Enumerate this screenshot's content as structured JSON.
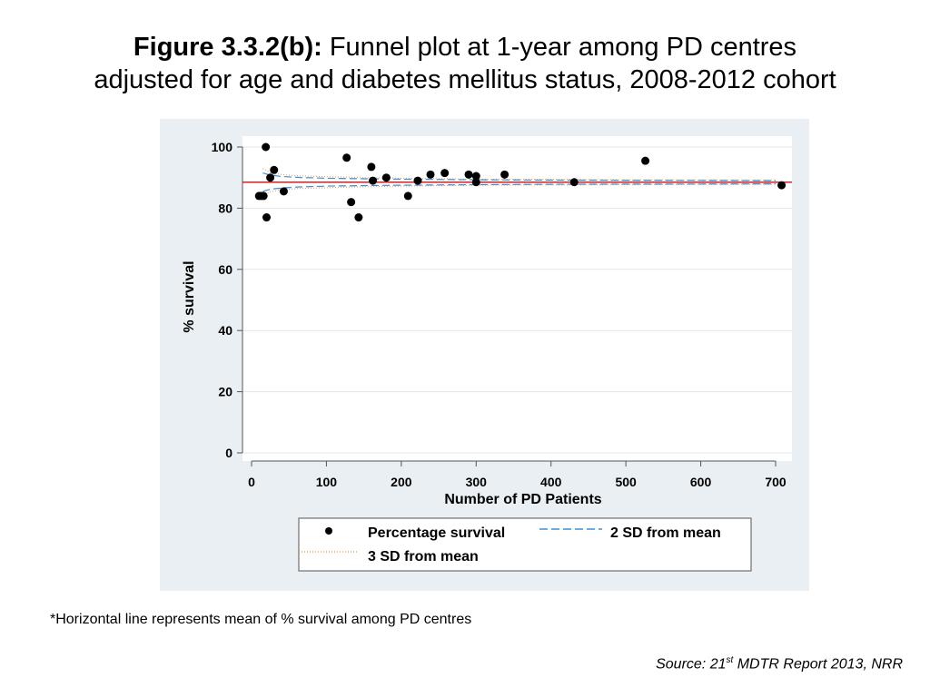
{
  "title": {
    "bold": "Figure 3.3.2(b):",
    "line1": "Funnel plot at 1-year among PD centres",
    "line2": "adjusted for age and diabetes mellitus status, 2008-2012 cohort"
  },
  "footnote": "*Horizontal line represents mean of % survival among PD centres",
  "source": {
    "prefix": "Source: 21",
    "sup": "st",
    "suffix": " MDTR Report 2013, NRR"
  },
  "colors": {
    "panel_bg": "#e9eff2",
    "plot_bg": "#ffffff",
    "mean_line": "#cc2222",
    "sd2": "#3b8fd6",
    "sd3": "#f0a060",
    "points": "#000000"
  },
  "chart_data": {
    "type": "scatter",
    "xlabel": "Number of PD Patients",
    "ylabel": "% survival",
    "xlim": [
      0,
      700
    ],
    "ylim": [
      0,
      100
    ],
    "xticks": [
      0,
      100,
      200,
      300,
      400,
      500,
      600,
      700
    ],
    "yticks": [
      0,
      20,
      40,
      60,
      80,
      100
    ],
    "grid": true,
    "mean": 88.5,
    "legend": {
      "placement": "below",
      "entries": [
        "Percentage survival",
        "2 SD from mean",
        "3 SD from mean"
      ]
    },
    "series": [
      {
        "name": "Percentage survival",
        "points": [
          [
            10,
            84
          ],
          [
            13,
            84
          ],
          [
            16,
            84
          ],
          [
            19,
            100
          ],
          [
            20,
            77
          ],
          [
            25,
            90
          ],
          [
            30,
            92.5
          ],
          [
            43,
            85.5
          ],
          [
            127,
            96.5
          ],
          [
            133,
            82
          ],
          [
            143,
            77
          ],
          [
            160,
            93.5
          ],
          [
            162,
            89
          ],
          [
            180,
            90
          ],
          [
            209,
            84
          ],
          [
            222,
            89
          ],
          [
            239,
            91
          ],
          [
            258,
            91.5
          ],
          [
            290,
            91
          ],
          [
            300,
            90.5
          ],
          [
            300,
            88.5
          ],
          [
            338,
            91
          ],
          [
            431,
            88.5
          ],
          [
            526,
            95.5
          ],
          [
            708,
            87.5
          ]
        ]
      }
    ],
    "limits": {
      "n": [
        15,
        25,
        40,
        60,
        100,
        150,
        200,
        300,
        400,
        500,
        600,
        700
      ],
      "sd2_upper": [
        91.5,
        90.8,
        90.4,
        90.1,
        89.8,
        89.6,
        89.5,
        89.3,
        89.2,
        89.15,
        89.1,
        89.05
      ],
      "sd2_lower": [
        85.5,
        86.2,
        86.6,
        86.9,
        87.2,
        87.4,
        87.5,
        87.7,
        87.8,
        87.85,
        87.9,
        87.95
      ],
      "sd3_upper": [
        93.0,
        91.6,
        91.0,
        90.6,
        90.3,
        90.0,
        89.8,
        89.5,
        89.4,
        89.3,
        89.25,
        89.2
      ],
      "sd3_lower": [
        84.0,
        85.4,
        86.0,
        86.4,
        86.7,
        87.0,
        87.2,
        87.5,
        87.6,
        87.7,
        87.75,
        87.8
      ]
    }
  }
}
